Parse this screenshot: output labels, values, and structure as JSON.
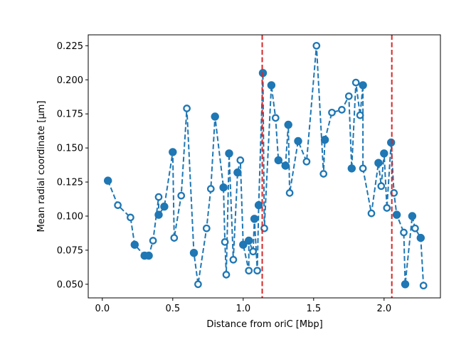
{
  "chart_data": {
    "type": "line",
    "xlabel": "Distance from oriC [Mbp]",
    "ylabel": "Mean radial coordinate [μm]",
    "xlim": [
      -0.1,
      2.4
    ],
    "ylim": [
      0.04,
      0.233
    ],
    "xticks": [
      0.0,
      0.5,
      1.0,
      1.5,
      2.0
    ],
    "xtick_labels": [
      "0.0",
      "0.5",
      "1.0",
      "1.5",
      "2.0"
    ],
    "yticks": [
      0.05,
      0.075,
      0.1,
      0.125,
      0.15,
      0.175,
      0.2,
      0.225
    ],
    "ytick_labels": [
      "0.050",
      "0.075",
      "0.100",
      "0.125",
      "0.150",
      "0.175",
      "0.200",
      "0.225"
    ],
    "grid": false,
    "line_color": "#1f77b4",
    "line_style": "dashed",
    "vlines": [
      {
        "x": 1.135,
        "color": "#d62728",
        "style": "dashed"
      },
      {
        "x": 2.055,
        "color": "#d62728",
        "style": "dashed"
      }
    ],
    "series": [
      {
        "x": [
          0.04,
          0.11,
          0.2,
          0.23,
          0.3,
          0.33,
          0.36,
          0.4,
          0.4,
          0.44,
          0.5,
          0.51,
          0.56,
          0.6,
          0.65,
          0.68,
          0.74,
          0.77,
          0.8,
          0.86,
          0.87,
          0.88,
          0.9,
          0.93,
          0.96,
          0.98,
          1.0,
          1.04,
          1.04,
          1.07,
          1.08,
          1.1,
          1.11,
          1.14,
          1.15,
          1.2,
          1.23,
          1.25,
          1.3,
          1.32,
          1.33,
          1.39,
          1.45,
          1.52,
          1.57,
          1.58,
          1.63,
          1.7,
          1.75,
          1.77,
          1.8,
          1.83,
          1.85,
          1.85,
          1.91,
          1.96,
          1.98,
          2.0,
          2.02,
          2.05,
          2.07,
          2.09,
          2.14,
          2.15,
          2.2,
          2.22,
          2.26,
          2.28
        ],
        "y": [
          0.126,
          0.108,
          0.099,
          0.079,
          0.071,
          0.071,
          0.082,
          0.114,
          0.101,
          0.107,
          0.147,
          0.084,
          0.115,
          0.179,
          0.073,
          0.05,
          0.091,
          0.12,
          0.173,
          0.121,
          0.081,
          0.057,
          0.146,
          0.068,
          0.132,
          0.141,
          0.079,
          0.06,
          0.082,
          0.074,
          0.098,
          0.06,
          0.108,
          0.205,
          0.091,
          0.196,
          0.172,
          0.141,
          0.137,
          0.167,
          0.117,
          0.155,
          0.14,
          0.225,
          0.131,
          0.156,
          0.176,
          0.178,
          0.188,
          0.135,
          0.198,
          0.174,
          0.196,
          0.135,
          0.102,
          0.139,
          0.122,
          0.146,
          0.106,
          0.154,
          0.117,
          0.101,
          0.088,
          0.05,
          0.1,
          0.091,
          0.084,
          0.049
        ],
        "filled": [
          true,
          false,
          false,
          true,
          true,
          true,
          false,
          false,
          true,
          true,
          true,
          false,
          false,
          false,
          true,
          false,
          false,
          false,
          true,
          true,
          false,
          false,
          true,
          false,
          true,
          false,
          true,
          false,
          true,
          false,
          true,
          false,
          true,
          true,
          false,
          true,
          false,
          true,
          true,
          true,
          false,
          true,
          false,
          false,
          false,
          true,
          false,
          false,
          false,
          true,
          false,
          false,
          true,
          false,
          false,
          true,
          false,
          true,
          false,
          true,
          false,
          true,
          false,
          true,
          true,
          false,
          true,
          false
        ]
      }
    ]
  }
}
